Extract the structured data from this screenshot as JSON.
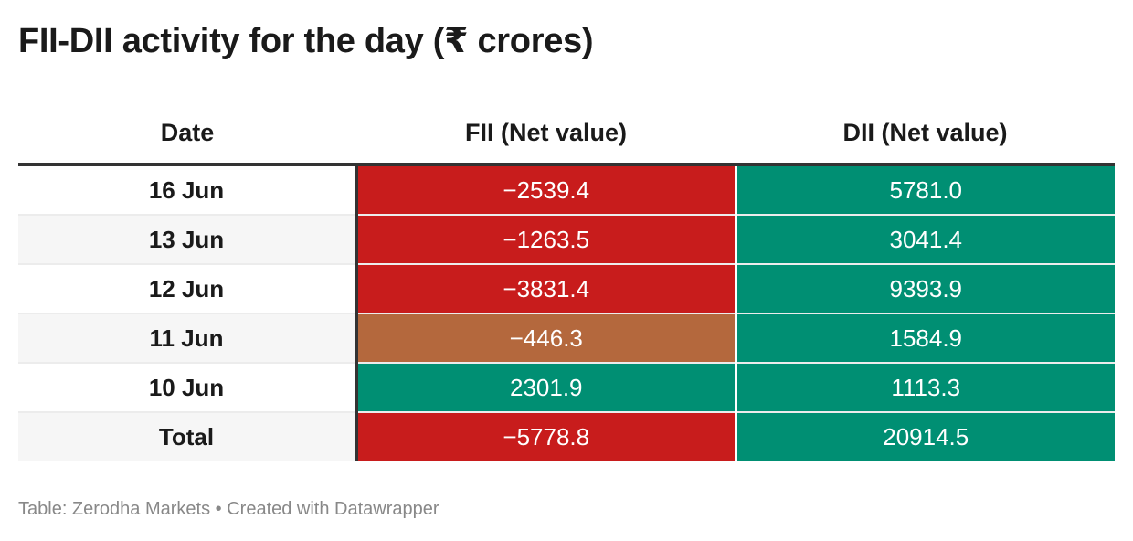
{
  "title": "FII-DII activity for the day (₹ crores)",
  "footer": "Table: Zerodha Markets • Created with Datawrapper",
  "colors": {
    "negative": "#c81c1c",
    "mild_negative": "#b4683d",
    "positive": "#008f73"
  },
  "chart_data": {
    "type": "table",
    "title": "FII-DII activity for the day (₹ crores)",
    "columns": [
      "Date",
      "FII (Net value)",
      "DII (Net value)"
    ],
    "rows": [
      {
        "date": "16 Jun",
        "fii": "−2539.4",
        "dii": "5781.0",
        "fii_value": -2539.4,
        "dii_value": 5781.0
      },
      {
        "date": "13 Jun",
        "fii": "−1263.5",
        "dii": "3041.4",
        "fii_value": -1263.5,
        "dii_value": 3041.4
      },
      {
        "date": "12 Jun",
        "fii": "−3831.4",
        "dii": "9393.9",
        "fii_value": -3831.4,
        "dii_value": 9393.9
      },
      {
        "date": "11 Jun",
        "fii": "−446.3",
        "dii": "1584.9",
        "fii_value": -446.3,
        "dii_value": 1584.9
      },
      {
        "date": "10 Jun",
        "fii": "2301.9",
        "dii": "1113.3",
        "fii_value": 2301.9,
        "dii_value": 1113.3
      },
      {
        "date": "Total",
        "fii": "−5778.8",
        "dii": "20914.5",
        "fii_value": -5778.8,
        "dii_value": 20914.5
      }
    ]
  }
}
